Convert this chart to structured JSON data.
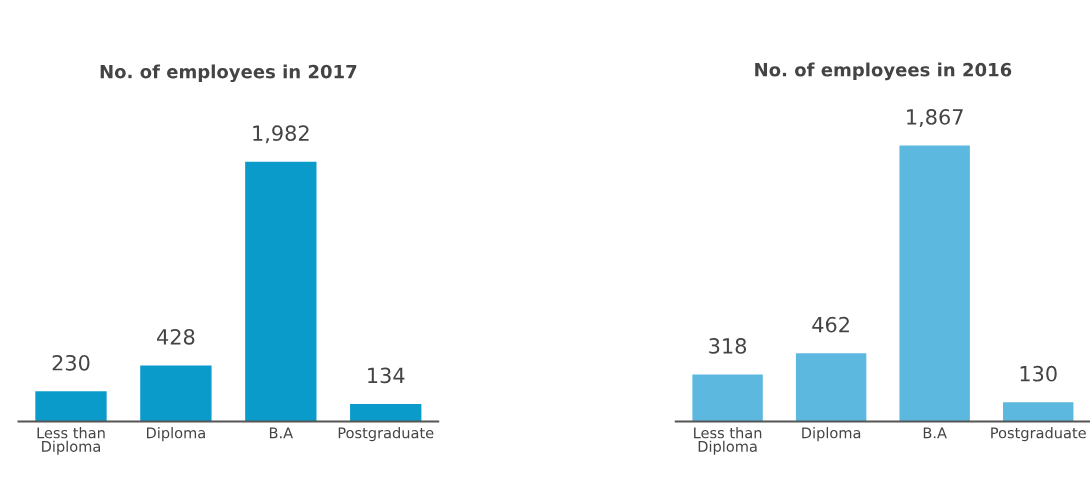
{
  "chart_data": [
    {
      "type": "bar",
      "title": "No. of employees in 2017",
      "categories": [
        "Less than\nDiploma",
        "Diploma",
        "B.A",
        "Postgraduate"
      ],
      "values": [
        230,
        428,
        1982,
        134
      ],
      "color": "#0b9bcb",
      "data_labels": true,
      "value_labels": [
        "230",
        "428",
        "1,982",
        "134"
      ]
    },
    {
      "type": "bar",
      "title": "No. of employees in 2016",
      "categories": [
        "Less than\nDiploma",
        "Diploma",
        "B.A",
        "Postgraduate"
      ],
      "values": [
        318,
        462,
        1867,
        130
      ],
      "color": "#5db8e0",
      "data_labels": true,
      "value_labels": [
        "318",
        "462",
        "1,867",
        "130"
      ]
    }
  ]
}
